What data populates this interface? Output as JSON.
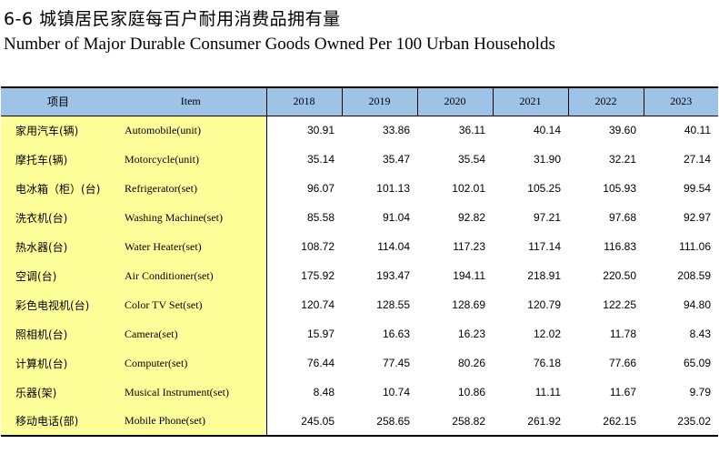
{
  "title_cn": "6-6 城镇居民家庭每百户耐用消费品拥有量",
  "title_en": "Number of Major Durable Consumer Goods Owned Per 100 Urban Households",
  "headers": {
    "item_cn": "项目",
    "item_en": "Item",
    "years": [
      "2018",
      "2019",
      "2020",
      "2021",
      "2022",
      "2023"
    ]
  },
  "rows": [
    {
      "cn": "家用汽车(辆)",
      "en": "Automobile(unit)",
      "values": [
        "30.91",
        "33.86",
        "36.11",
        "40.14",
        "39.60",
        "40.11"
      ]
    },
    {
      "cn": "摩托车(辆)",
      "en": "Motorcycle(unit)",
      "values": [
        "35.14",
        "35.47",
        "35.54",
        "31.90",
        "32.21",
        "27.14"
      ]
    },
    {
      "cn": "电冰箱（柜）(台)",
      "en": "Refrigerator(set)",
      "values": [
        "96.07",
        "101.13",
        "102.01",
        "105.25",
        "105.93",
        "99.54"
      ]
    },
    {
      "cn": "洗衣机(台)",
      "en": "Washing Machine(set)",
      "values": [
        "85.58",
        "91.04",
        "92.82",
        "97.21",
        "97.68",
        "92.97"
      ]
    },
    {
      "cn": "热水器(台)",
      "en": "Water Heater(set)",
      "values": [
        "108.72",
        "114.04",
        "117.23",
        "117.14",
        "116.83",
        "111.06"
      ]
    },
    {
      "cn": "空调(台)",
      "en": "Air Conditioner(set)",
      "values": [
        "175.92",
        "193.47",
        "194.11",
        "218.91",
        "220.50",
        "208.59"
      ]
    },
    {
      "cn": "彩色电视机(台)",
      "en": "Color TV Set(set)",
      "values": [
        "120.74",
        "128.55",
        "128.69",
        "120.79",
        "122.25",
        "94.80"
      ]
    },
    {
      "cn": "照相机(台)",
      "en": "Camera(set)",
      "values": [
        "15.97",
        "16.63",
        "16.23",
        "12.02",
        "11.78",
        "8.43"
      ]
    },
    {
      "cn": "计算机(台)",
      "en": "Computer(set)",
      "values": [
        "76.44",
        "77.45",
        "80.26",
        "76.18",
        "77.66",
        "65.09"
      ]
    },
    {
      "cn": "乐器(架)",
      "en": "Musical Instrument(set)",
      "values": [
        "8.48",
        "10.74",
        "10.86",
        "11.11",
        "11.67",
        "9.79"
      ]
    },
    {
      "cn": "移动电话(部)",
      "en": "Mobile Phone(set)",
      "values": [
        "245.05",
        "258.65",
        "258.82",
        "261.92",
        "262.15",
        "235.02"
      ]
    }
  ]
}
